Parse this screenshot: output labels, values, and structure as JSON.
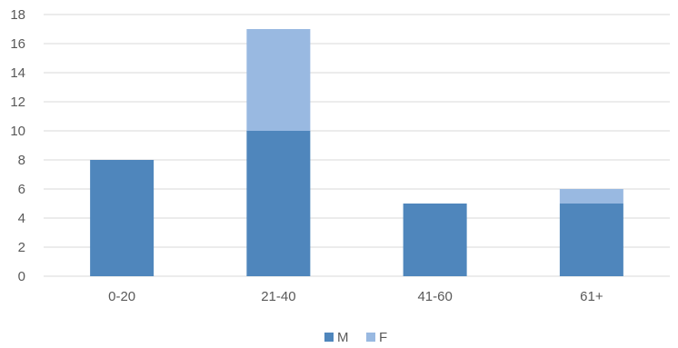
{
  "chart_data": {
    "type": "bar",
    "stacked": true,
    "categories": [
      "0-20",
      "21-40",
      "41-60",
      "61+"
    ],
    "series": [
      {
        "name": "M",
        "values": [
          8,
          10,
          5,
          5
        ],
        "color": "#4f86bc"
      },
      {
        "name": "F",
        "values": [
          0,
          7,
          0,
          1
        ],
        "color": "#99b9e1"
      }
    ],
    "ylim": [
      0,
      18
    ],
    "yticks": [
      "0",
      "2",
      "4",
      "6",
      "8",
      "10",
      "12",
      "14",
      "16",
      "18"
    ],
    "grid": true,
    "legend_position": "bottom"
  }
}
